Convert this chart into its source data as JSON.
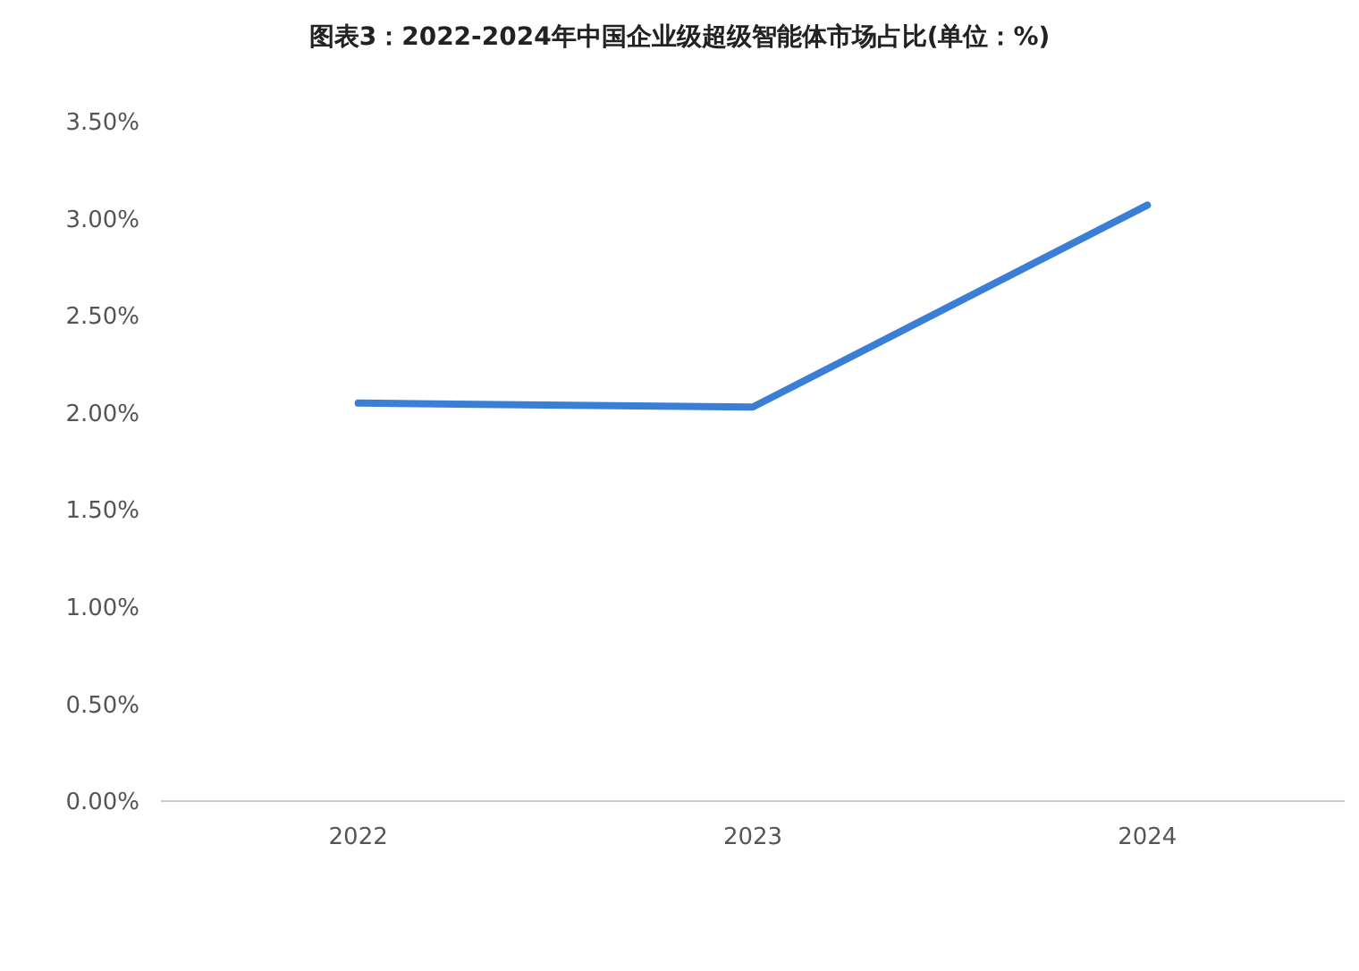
{
  "chart_data": {
    "type": "line",
    "title": "图表3：2022-2024年中国企业级超级智能体市场占比(单位：%)",
    "categories": [
      "2022",
      "2023",
      "2024"
    ],
    "series": [
      {
        "color": "#3a7fd5",
        "values": [
          2.05,
          2.03,
          3.07
        ]
      }
    ],
    "ylim": [
      0,
      3.5
    ],
    "yticks": [
      {
        "value": 0,
        "label": "0.00%"
      },
      {
        "value": 0.5,
        "label": "0.50%"
      },
      {
        "value": 1,
        "label": "1.00%"
      },
      {
        "value": 1.5,
        "label": "1.50%"
      },
      {
        "value": 2,
        "label": "2.00%"
      },
      {
        "value": 2.5,
        "label": "2.50%"
      },
      {
        "value": 3,
        "label": "3.00%"
      },
      {
        "value": 3.5,
        "label": "3.50%"
      }
    ],
    "grid": false,
    "marker": "none",
    "line_style": "solid"
  }
}
